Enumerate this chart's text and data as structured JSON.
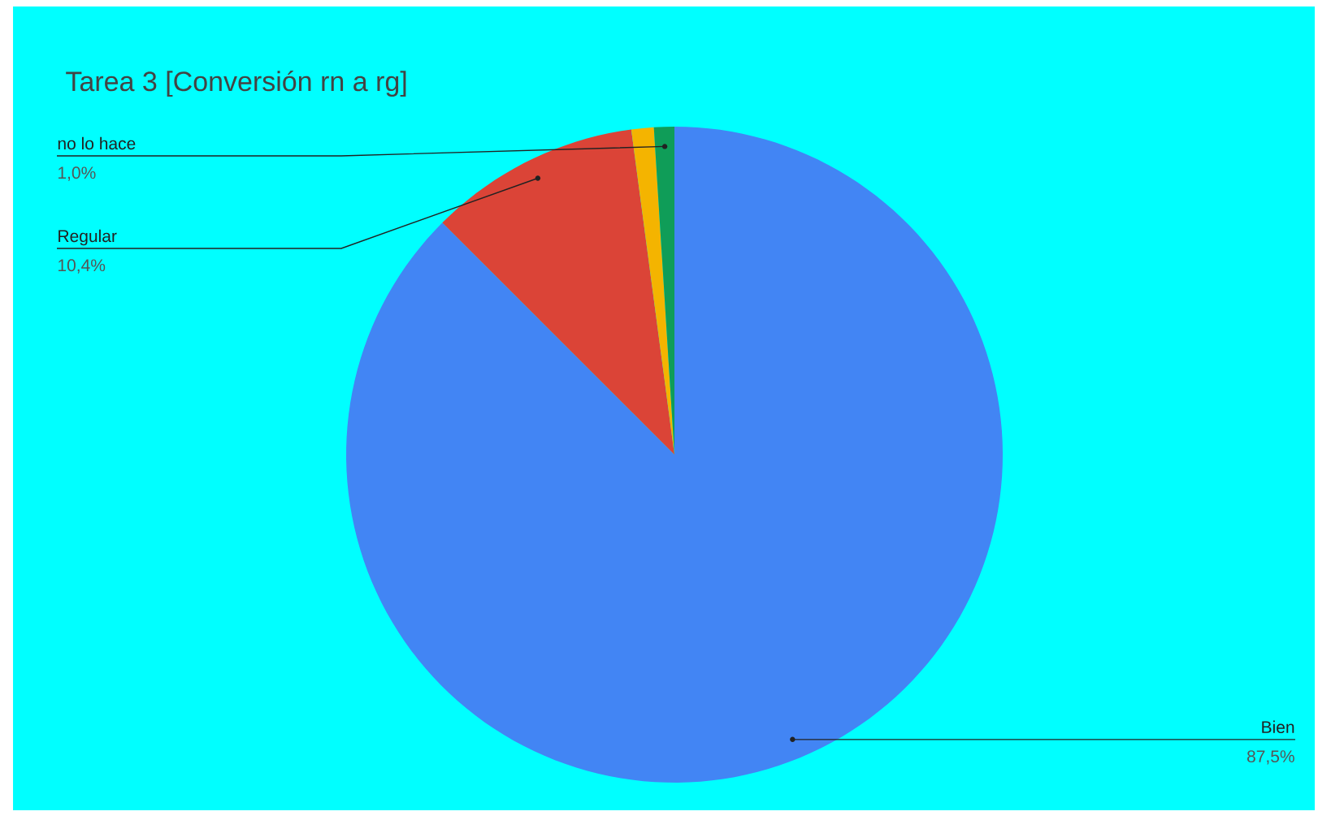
{
  "chart_data": {
    "type": "pie",
    "title": "Tarea 3 [Conversión rn a rg]",
    "categories": [
      "Bien",
      "Regular",
      null,
      "no lo hace"
    ],
    "values": [
      87.5,
      10.4,
      1.1,
      1.0
    ],
    "value_labels": [
      "87,5%",
      "10,4%",
      null,
      "1,0%"
    ],
    "colors": [
      "#4285f4",
      "#db4437",
      "#f4b400",
      "#0f9d58"
    ]
  }
}
